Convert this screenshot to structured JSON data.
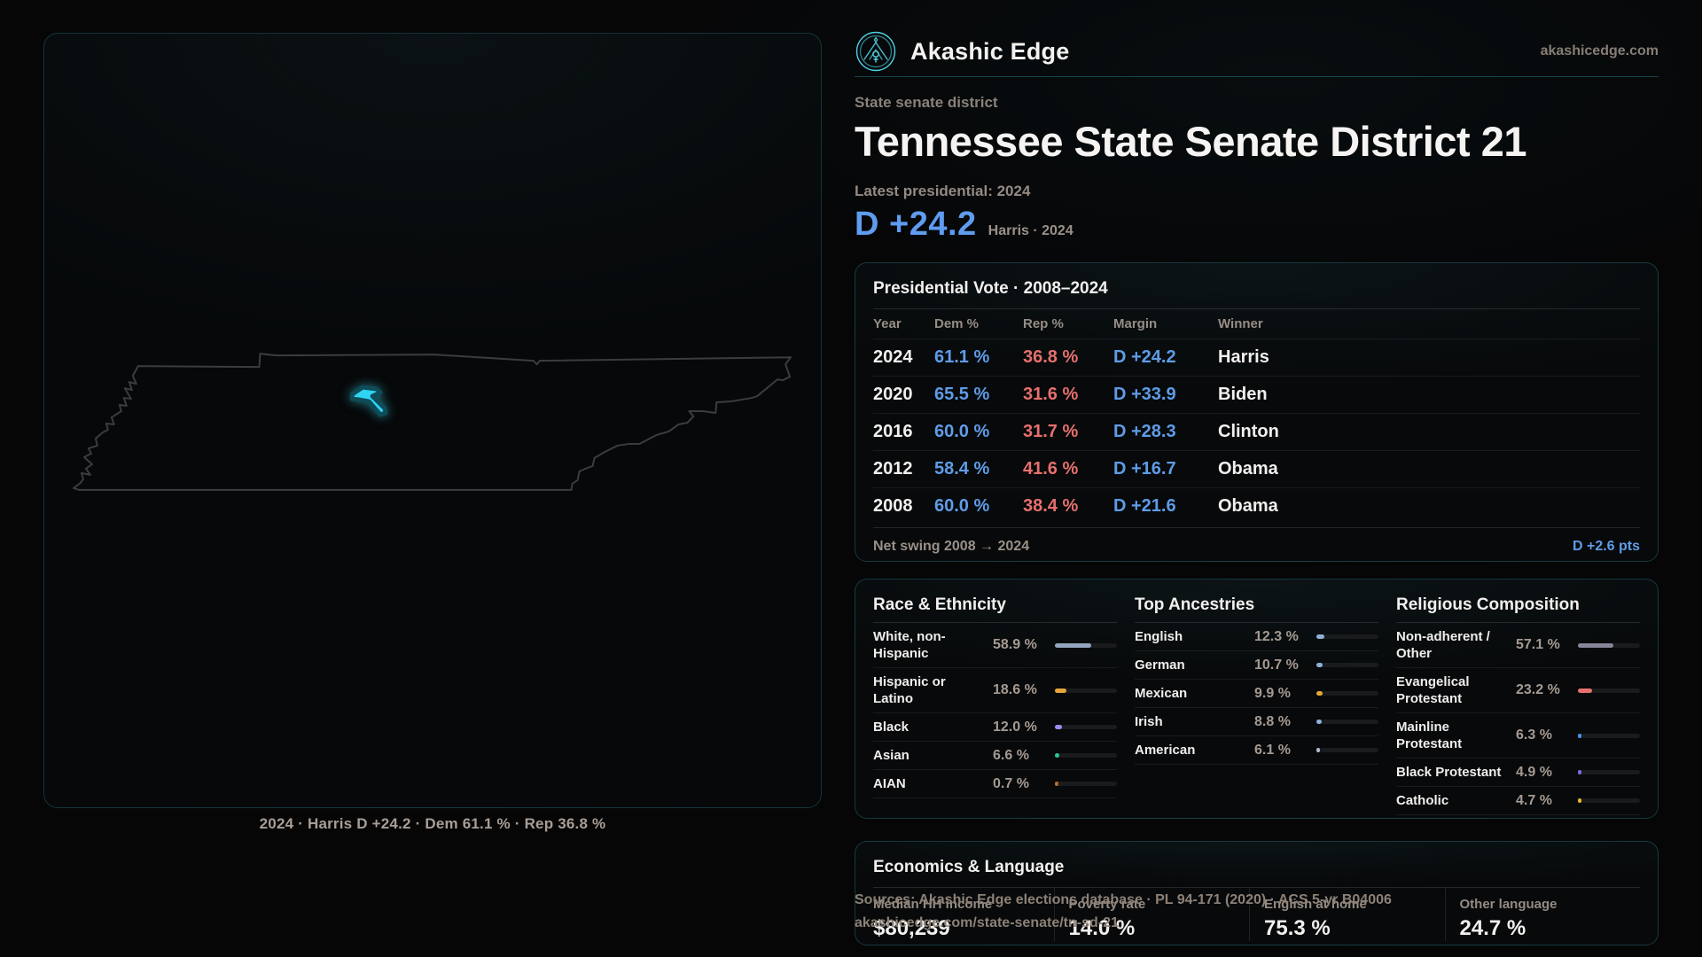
{
  "brand": {
    "name": "Akashic Edge",
    "domain": "akashicedge.com"
  },
  "kicker": "State senate district",
  "title": "Tennessee State Senate District 21",
  "latest_label": "Latest presidential: 2024",
  "headline": {
    "value": "D +24.2",
    "context": "Harris · 2024"
  },
  "map": {
    "caption": "2024 · Harris D +24.2 · Dem 61.1 % · Rep 36.8 %"
  },
  "colors": {
    "accent_teal": "#3ecfe4",
    "dem_blue": "#5f9ce8",
    "rep_red": "#e7706e",
    "district_fill": "#2fd3f2",
    "state_outline": "#3c3c40"
  },
  "presidential_table": {
    "title": "Presidential Vote · 2008–2024",
    "columns": [
      "Year",
      "Dem %",
      "Rep %",
      "Margin",
      "Winner"
    ],
    "rows": [
      {
        "year": "2024",
        "dem": "61.1 %",
        "rep": "36.8 %",
        "margin": "D +24.2",
        "winner": "Harris"
      },
      {
        "year": "2020",
        "dem": "65.5 %",
        "rep": "31.6 %",
        "margin": "D +33.9",
        "winner": "Biden"
      },
      {
        "year": "2016",
        "dem": "60.0 %",
        "rep": "31.7 %",
        "margin": "D +28.3",
        "winner": "Clinton"
      },
      {
        "year": "2012",
        "dem": "58.4 %",
        "rep": "41.6 %",
        "margin": "D +16.7",
        "winner": "Obama"
      },
      {
        "year": "2008",
        "dem": "60.0 %",
        "rep": "38.4 %",
        "margin": "D +21.6",
        "winner": "Obama"
      }
    ],
    "net_swing_label": "Net swing 2008 → 2024",
    "net_swing_value": "D +2.6 pts"
  },
  "demographics": {
    "race": {
      "title": "Race & Ethnicity",
      "rows": [
        {
          "label": "White, non-Hispanic",
          "value": "58.9 %",
          "pct": 58.9,
          "color": "#93a6bf"
        },
        {
          "label": "Hispanic or Latino",
          "value": "18.6 %",
          "pct": 18.6,
          "color": "#e8a43c"
        },
        {
          "label": "Black",
          "value": "12.0 %",
          "pct": 12.0,
          "color": "#9d8df5"
        },
        {
          "label": "Asian",
          "value": "6.6 %",
          "pct": 6.6,
          "color": "#2ec695"
        },
        {
          "label": "AIAN",
          "value": "0.7 %",
          "pct": 0.7,
          "color": "#b06a30"
        }
      ]
    },
    "ancestries": {
      "title": "Top Ancestries",
      "rows": [
        {
          "label": "English",
          "value": "12.3 %",
          "pct": 12.3,
          "color": "#8fb0d8"
        },
        {
          "label": "German",
          "value": "10.7 %",
          "pct": 10.7,
          "color": "#8fb0d8"
        },
        {
          "label": "Mexican",
          "value": "9.9 %",
          "pct": 9.9,
          "color": "#e8a838"
        },
        {
          "label": "Irish",
          "value": "8.8 %",
          "pct": 8.8,
          "color": "#8fb0d8"
        },
        {
          "label": "American",
          "value": "6.1 %",
          "pct": 6.1,
          "color": "#a8b8c8"
        }
      ]
    },
    "religion": {
      "title": "Religious Composition",
      "rows": [
        {
          "label": "Non-adherent / Other",
          "value": "57.1 %",
          "pct": 57.1,
          "color": "#87859a"
        },
        {
          "label": "Evangelical Protestant",
          "value": "23.2 %",
          "pct": 23.2,
          "color": "#e5716f"
        },
        {
          "label": "Mainline Protestant",
          "value": "6.3 %",
          "pct": 6.3,
          "color": "#4a8fe8"
        },
        {
          "label": "Black Protestant",
          "value": "4.9 %",
          "pct": 4.9,
          "color": "#7e6ae0"
        },
        {
          "label": "Catholic",
          "value": "4.7 %",
          "pct": 4.7,
          "color": "#e8b42c"
        }
      ]
    }
  },
  "economics": {
    "title": "Economics & Language",
    "stats": [
      {
        "label": "Median HH income",
        "value": "$80,239"
      },
      {
        "label": "Poverty rate",
        "value": "14.0 %"
      },
      {
        "label": "English at home",
        "value": "75.3 %"
      },
      {
        "label": "Other language",
        "value": "24.7 %"
      }
    ]
  },
  "footer": {
    "sources": "Sources: Akashic Edge elections database · PL 94-171 (2020) · ACS 5-yr B04006",
    "permalink": "akashicedge.com/state-senate/tn-sd-21"
  },
  "chart_data": [
    {
      "type": "table",
      "title": "Presidential Vote · 2008–2024",
      "columns": [
        "Year",
        "Dem %",
        "Rep %",
        "Margin",
        "Winner"
      ],
      "rows": [
        [
          "2024",
          61.1,
          36.8,
          "D +24.2",
          "Harris"
        ],
        [
          "2020",
          65.5,
          31.6,
          "D +33.9",
          "Biden"
        ],
        [
          "2016",
          60.0,
          31.7,
          "D +28.3",
          "Clinton"
        ],
        [
          "2012",
          58.4,
          41.6,
          "D +16.7",
          "Obama"
        ],
        [
          "2008",
          60.0,
          38.4,
          "D +21.6",
          "Obama"
        ]
      ]
    },
    {
      "type": "bar",
      "title": "Race & Ethnicity",
      "categories": [
        "White, non-Hispanic",
        "Hispanic or Latino",
        "Black",
        "Asian",
        "AIAN"
      ],
      "values": [
        58.9,
        18.6,
        12.0,
        6.6,
        0.7
      ],
      "xlim": [
        0,
        100
      ]
    },
    {
      "type": "bar",
      "title": "Top Ancestries",
      "categories": [
        "English",
        "German",
        "Mexican",
        "Irish",
        "American"
      ],
      "values": [
        12.3,
        10.7,
        9.9,
        8.8,
        6.1
      ],
      "xlim": [
        0,
        100
      ]
    },
    {
      "type": "bar",
      "title": "Religious Composition",
      "categories": [
        "Non-adherent / Other",
        "Evangelical Protestant",
        "Mainline Protestant",
        "Black Protestant",
        "Catholic"
      ],
      "values": [
        57.1,
        23.2,
        6.3,
        4.9,
        4.7
      ],
      "xlim": [
        0,
        100
      ]
    }
  ]
}
